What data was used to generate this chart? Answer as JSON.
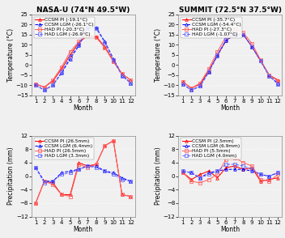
{
  "months": [
    1,
    2,
    3,
    4,
    5,
    6,
    7,
    8,
    9,
    10,
    11,
    12
  ],
  "nasa_temp": {
    "title": "NASA-U (74°N 49.5°W)",
    "ylabel": "Temperature (°C)",
    "xlabel": "Month",
    "ylim": [
      -15,
      25
    ],
    "yticks": [
      -15,
      -10,
      -5,
      0,
      5,
      10,
      15,
      20,
      25
    ],
    "series": [
      {
        "label": "CCSM PI (-19.1°C)",
        "data": [
          -9.5,
          -11.0,
          -8.0,
          -2.0,
          5.0,
          11.0,
          14.5,
          14.0,
          9.0,
          2.0,
          -4.5,
          -7.5
        ],
        "color": "#FF0000",
        "marker": "^",
        "linestyle": "-"
      },
      {
        "label": "CCSM LGM (-26.1°C)",
        "data": [
          -10.0,
          -12.5,
          -10.0,
          -4.0,
          3.0,
          9.5,
          18.0,
          18.5,
          11.5,
          3.0,
          -5.0,
          -9.0
        ],
        "color": "#0000FF",
        "marker": "^",
        "linestyle": "--"
      },
      {
        "label": "HAD PI (-20.3°C)",
        "data": [
          -9.5,
          -11.0,
          -7.5,
          -1.0,
          6.5,
          11.5,
          14.5,
          13.5,
          8.5,
          1.5,
          -4.5,
          -7.5
        ],
        "color": "#FF6666",
        "marker": "s",
        "linestyle": "-"
      },
      {
        "label": "HAD LGM (-26.9°C)",
        "data": [
          -10.0,
          -12.5,
          -10.0,
          -3.5,
          4.0,
          10.0,
          18.5,
          18.0,
          11.0,
          2.5,
          -5.5,
          -9.0
        ],
        "color": "#6666FF",
        "marker": "s",
        "linestyle": "--"
      }
    ]
  },
  "summit_temp": {
    "title": "SUMMIT (72.5°N 37.5°W)",
    "ylabel": "Temperature (°C)",
    "xlabel": "Month",
    "ylim": [
      -15,
      25
    ],
    "yticks": [
      -15,
      -10,
      -5,
      0,
      5,
      10,
      15,
      20,
      25
    ],
    "series": [
      {
        "label": "CCSM PI (-35.7°C)",
        "data": [
          -8.5,
          -11.5,
          -9.5,
          -3.0,
          5.0,
          12.0,
          15.0,
          15.0,
          9.0,
          2.0,
          -5.0,
          -7.5
        ],
        "color": "#FF0000",
        "marker": "^",
        "linestyle": "-"
      },
      {
        "label": "CCSM LGM (-54.4°C)",
        "data": [
          -9.5,
          -12.5,
          -10.5,
          -3.5,
          4.5,
          12.0,
          15.0,
          15.0,
          9.0,
          2.0,
          -5.5,
          -9.0
        ],
        "color": "#0000FF",
        "marker": "^",
        "linestyle": "--"
      },
      {
        "label": "HAD PI (-27.3°C)",
        "data": [
          -8.5,
          -11.5,
          -9.0,
          -2.0,
          6.5,
          14.0,
          17.5,
          16.0,
          10.5,
          2.5,
          -5.0,
          -8.0
        ],
        "color": "#FF6666",
        "marker": "s",
        "linestyle": "-"
      },
      {
        "label": "HAD LGM (-1.07°C)",
        "data": [
          -9.5,
          -12.5,
          -10.5,
          -3.5,
          5.0,
          12.5,
          15.0,
          15.0,
          9.0,
          2.0,
          -5.5,
          -9.5
        ],
        "color": "#6666FF",
        "marker": "s",
        "linestyle": "--"
      }
    ]
  },
  "nasa_precip": {
    "title": "",
    "ylabel": "Precipitation (mm)",
    "xlabel": "Month",
    "ylim": [
      -12,
      12
    ],
    "yticks": [
      -12,
      -8,
      -4,
      0,
      4,
      8,
      12
    ],
    "series": [
      {
        "label": "CCSM PI (26.5mm)",
        "data": [
          -8.0,
          -1.5,
          -2.0,
          -5.5,
          -5.5,
          4.0,
          3.0,
          3.5,
          9.0,
          10.5,
          -5.5,
          -6.0
        ],
        "color": "#FF0000",
        "marker": "^",
        "linestyle": "-"
      },
      {
        "label": "CCSM LGM (6.4mm)",
        "data": [
          2.5,
          -1.5,
          -1.5,
          1.0,
          1.5,
          2.0,
          3.0,
          3.0,
          1.5,
          1.0,
          -0.5,
          -1.5
        ],
        "color": "#0000FF",
        "marker": "^",
        "linestyle": "--"
      },
      {
        "label": "HAD PI (26.5mm)",
        "data": [
          -8.0,
          -1.5,
          -2.5,
          -5.5,
          -6.0,
          3.5,
          2.5,
          3.5,
          9.0,
          10.5,
          -5.5,
          -6.0
        ],
        "color": "#FF6666",
        "marker": "s",
        "linestyle": "-"
      },
      {
        "label": "HAD LGM (3.3mm)",
        "data": [
          2.5,
          -2.0,
          -1.5,
          0.5,
          1.0,
          2.0,
          3.0,
          2.5,
          1.5,
          0.5,
          -1.0,
          -1.5
        ],
        "color": "#6666FF",
        "marker": "s",
        "linestyle": "--"
      }
    ]
  },
  "summit_precip": {
    "title": "",
    "ylabel": "Precipitation (mm)",
    "xlabel": "Month",
    "ylim": [
      -12,
      12
    ],
    "yticks": [
      -12,
      -8,
      -4,
      0,
      4,
      8,
      12
    ],
    "series": [
      {
        "label": "CCSM PI (2.5mm)",
        "data": [
          1.0,
          -1.0,
          0.5,
          1.5,
          -0.5,
          2.5,
          3.0,
          2.0,
          2.5,
          -1.5,
          -1.0,
          -0.5
        ],
        "color": "#FF0000",
        "marker": "^",
        "linestyle": "-"
      },
      {
        "label": "CCSM LGM (6.9mm)",
        "data": [
          1.5,
          1.0,
          -0.5,
          1.0,
          1.5,
          2.0,
          2.0,
          2.0,
          1.5,
          0.5,
          0.0,
          1.0
        ],
        "color": "#0000FF",
        "marker": "^",
        "linestyle": "--"
      },
      {
        "label": "HAD PI (5.5mm)",
        "data": [
          1.0,
          -1.5,
          -2.0,
          -1.0,
          0.5,
          5.0,
          5.5,
          4.0,
          3.0,
          -1.0,
          -1.5,
          0.5
        ],
        "color": "#FF6666",
        "marker": "s",
        "linestyle": "-"
      },
      {
        "label": "HAD LGM (4.0mm)",
        "data": [
          1.5,
          1.0,
          -0.5,
          0.5,
          1.5,
          3.5,
          3.5,
          3.0,
          2.0,
          0.5,
          0.0,
          1.0
        ],
        "color": "#6666FF",
        "marker": "s",
        "linestyle": "--"
      }
    ]
  },
  "bg_color": "#F0F0F0",
  "plot_bg_color": "#F0F0F0",
  "grid_color": "#FFFFFF",
  "fontsize_title": 6.5,
  "fontsize_tick": 5.0,
  "fontsize_legend": 4.2,
  "fontsize_label": 5.5,
  "marker_size": 2.5,
  "line_width": 0.75
}
